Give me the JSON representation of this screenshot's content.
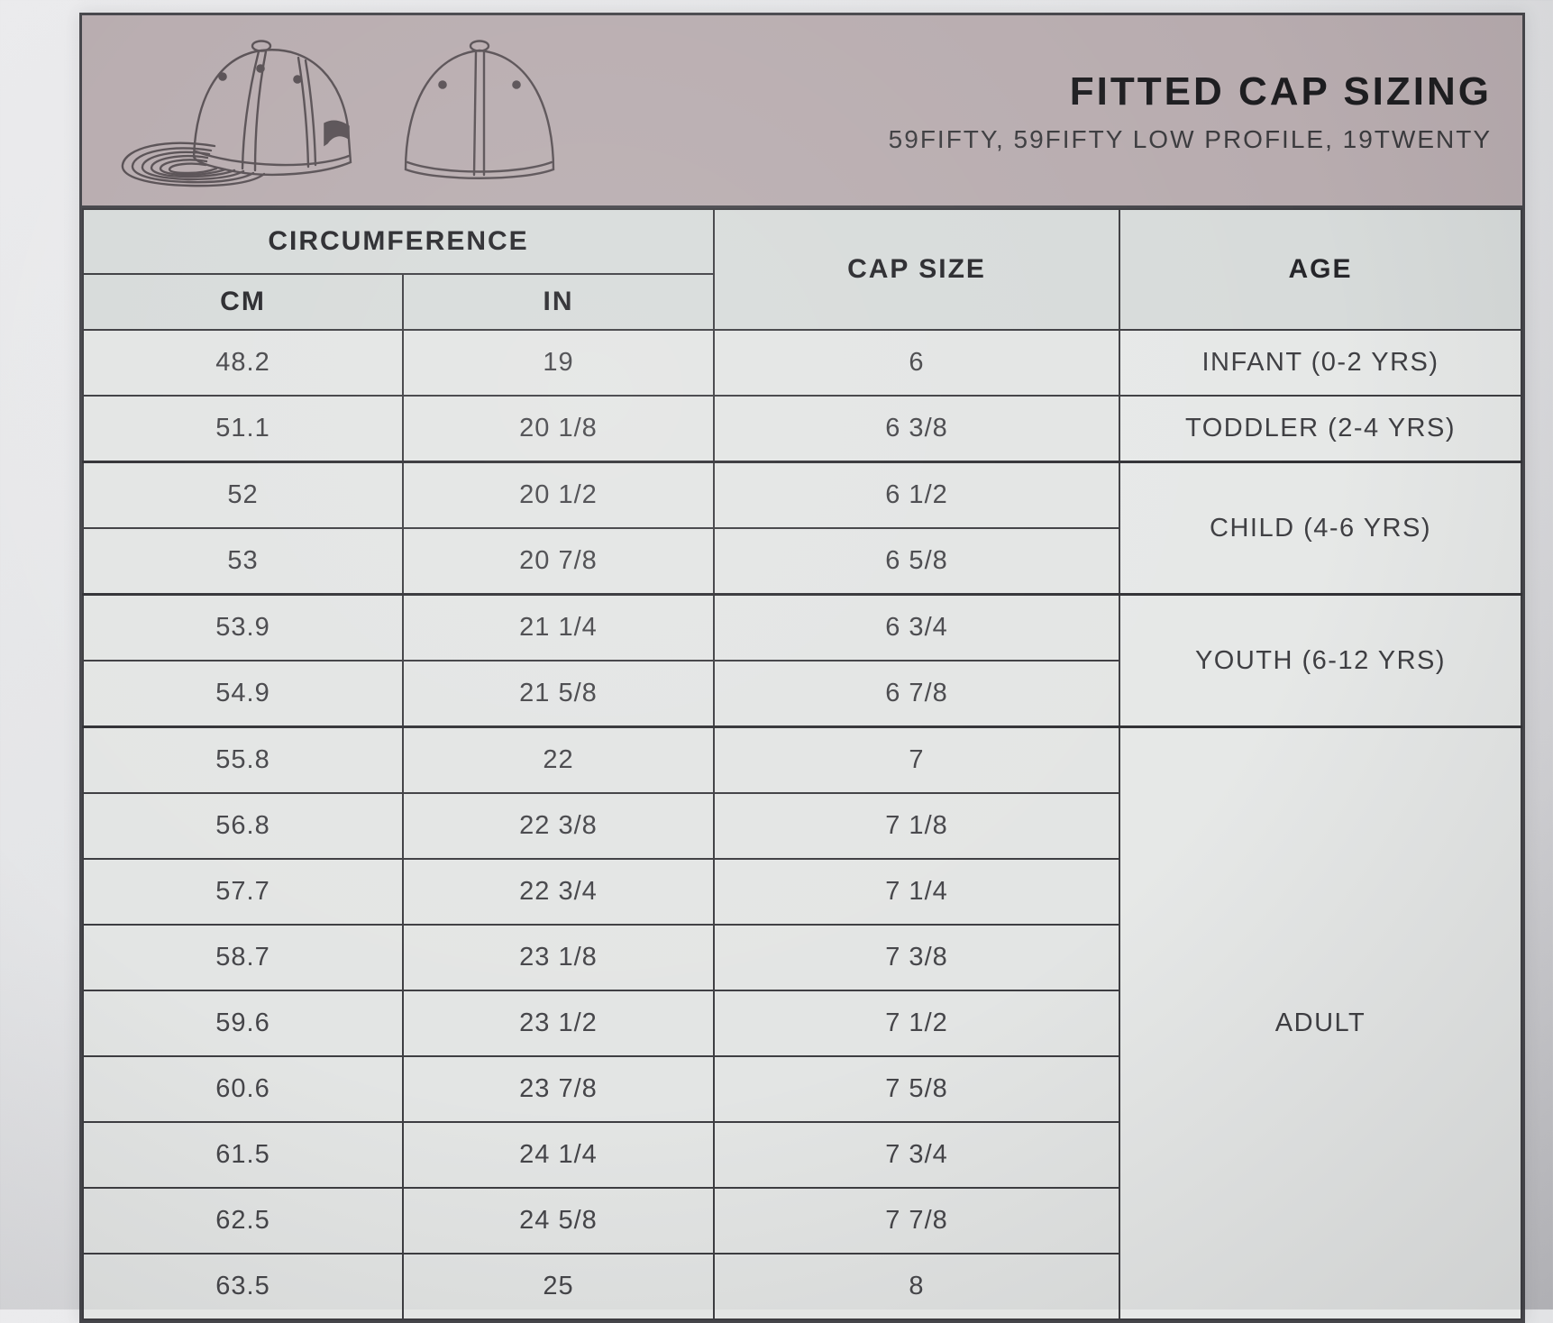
{
  "header": {
    "title": "FITTED CAP SIZING",
    "subtitle": "59FIFTY, 59FIFTY LOW PROFILE, 19TWENTY",
    "icons": [
      "fitted-cap-side-view-drawing",
      "fitted-cap-back-view-drawing"
    ]
  },
  "table": {
    "columns": {
      "circumference": "CIRCUMFERENCE",
      "cm": "CM",
      "in": "IN",
      "cap_size": "CAP SIZE",
      "age": "AGE"
    },
    "rows": [
      {
        "cm": "48.2",
        "in": "19",
        "cap_size": "6",
        "age": "INFANT (0-2 YRS)",
        "age_rowspan": 1
      },
      {
        "cm": "51.1",
        "in": "20 1/8",
        "cap_size": "6 3/8",
        "age": "TODDLER (2-4 YRS)",
        "age_rowspan": 1
      },
      {
        "cm": "52",
        "in": "20 1/2",
        "cap_size": "6 1/2",
        "age": "CHILD (4-6 YRS)",
        "age_rowspan": 2,
        "group_start": true
      },
      {
        "cm": "53",
        "in": "20 7/8",
        "cap_size": "6 5/8"
      },
      {
        "cm": "53.9",
        "in": "21 1/4",
        "cap_size": "6 3/4",
        "age": "YOUTH (6-12 YRS)",
        "age_rowspan": 2,
        "group_start": true
      },
      {
        "cm": "54.9",
        "in": "21 5/8",
        "cap_size": "6 7/8"
      },
      {
        "cm": "55.8",
        "in": "22",
        "cap_size": "7",
        "age": "ADULT",
        "age_rowspan": 9,
        "group_start": true
      },
      {
        "cm": "56.8",
        "in": "22 3/8",
        "cap_size": "7 1/8"
      },
      {
        "cm": "57.7",
        "in": "22 3/4",
        "cap_size": "7 1/4"
      },
      {
        "cm": "58.7",
        "in": "23 1/8",
        "cap_size": "7 3/8"
      },
      {
        "cm": "59.6",
        "in": "23 1/2",
        "cap_size": "7 1/2"
      },
      {
        "cm": "60.6",
        "in": "23 7/8",
        "cap_size": "7 5/8"
      },
      {
        "cm": "61.5",
        "in": "24 1/4",
        "cap_size": "7 3/4"
      },
      {
        "cm": "62.5",
        "in": "24 5/8",
        "cap_size": "7 7/8"
      },
      {
        "cm": "63.5",
        "in": "25",
        "cap_size": "8"
      }
    ]
  },
  "colors": {
    "banner": "#b8acaf",
    "header_cell": "#d7dbda",
    "data_cell": "#e3e5e4",
    "border": "#3d3d41",
    "title_text": "#1d1d20",
    "line_art": "#574f53"
  }
}
